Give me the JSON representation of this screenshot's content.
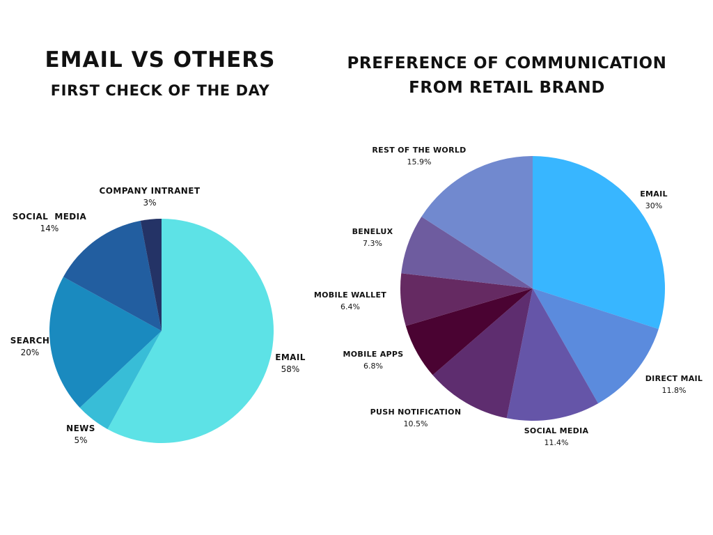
{
  "chart_data": [
    {
      "type": "pie",
      "title": "EMAIL VS OTHERS",
      "subtitle": "FIRST CHECK OF THE DAY",
      "slices": [
        {
          "label": "EMAIL",
          "value": 58,
          "display": "58%",
          "color": "#5DE2E6"
        },
        {
          "label": "NEWS",
          "value": 5,
          "display": "5%",
          "color": "#38BDD7"
        },
        {
          "label": "SEARCH",
          "value": 20,
          "display": "20%",
          "color": "#1A8ABF"
        },
        {
          "label": "SOCIAL  MEDIA",
          "value": 14,
          "display": "14%",
          "color": "#225EA0"
        },
        {
          "label": "COMPANY INTRANET",
          "value": 3,
          "display": "3%",
          "color": "#243366"
        }
      ]
    },
    {
      "type": "pie",
      "title": "PREFERENCE OF COMMUNICATION FROM RETAIL BRAND",
      "slices": [
        {
          "label": "EMAIL",
          "value": 30,
          "display": "30%",
          "color": "#38B6FF"
        },
        {
          "label": "DIRECT MAIL",
          "value": 11.8,
          "display": "11.8%",
          "color": "#5B8BDD"
        },
        {
          "label": "SOCIAL MEDIA",
          "value": 11.4,
          "display": "11.4%",
          "color": "#6555A8"
        },
        {
          "label": "PUSH NOTIFICATION",
          "value": 10.5,
          "display": "10.5%",
          "color": "#5E2D6F"
        },
        {
          "label": "MOBILE APPS",
          "value": 6.8,
          "display": "6.8%",
          "color": "#4A0332"
        },
        {
          "label": "MOBILE WALLET",
          "value": 6.4,
          "display": "6.4%",
          "color": "#652A62"
        },
        {
          "label": "BENELUX",
          "value": 7.3,
          "display": "7.3%",
          "color": "#6E5C9F"
        },
        {
          "label": "REST OF THE WORLD",
          "value": 15.9,
          "display": "15.9%",
          "color": "#7189CF"
        }
      ]
    }
  ]
}
